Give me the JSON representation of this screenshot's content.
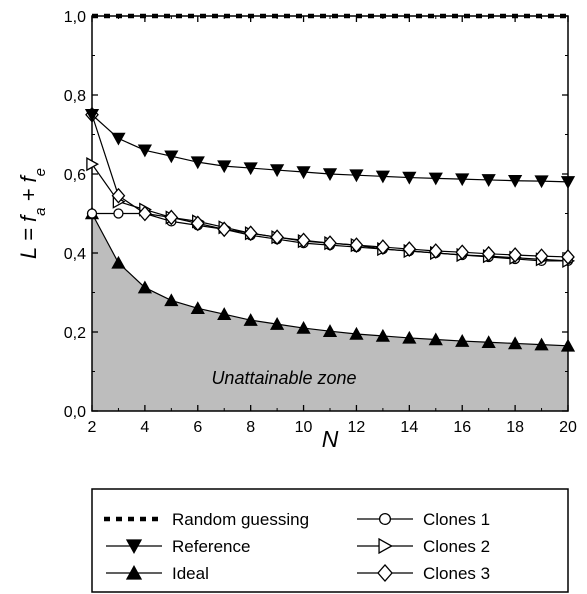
{
  "chart_data": {
    "type": "line",
    "x": [
      2,
      3,
      4,
      5,
      6,
      7,
      8,
      9,
      10,
      11,
      12,
      13,
      14,
      15,
      16,
      17,
      18,
      19,
      20
    ],
    "xlim": [
      2,
      20
    ],
    "ylim": [
      0,
      1
    ],
    "x_ticks": [
      "2",
      "4",
      "6",
      "8",
      "10",
      "12",
      "14",
      "16",
      "18",
      "20"
    ],
    "y_ticks": [
      "0,0",
      "0,2",
      "0,4",
      "0,6",
      "0,8",
      "1,0"
    ],
    "xlabel": "N",
    "ylabel": {
      "main": "L = f",
      "sub1": "a",
      "plus": " + f",
      "sub2": "e"
    },
    "annotation": "Unattainable zone",
    "legend_position": "bottom",
    "series": [
      {
        "name": "Random guessing",
        "marker": "none",
        "style": "dotted",
        "values": [
          1,
          1,
          1,
          1,
          1,
          1,
          1,
          1,
          1,
          1,
          1,
          1,
          1,
          1,
          1,
          1,
          1,
          1,
          1
        ]
      },
      {
        "name": "Reference",
        "marker": "triangle-down-filled",
        "style": "solid",
        "values": [
          0.75,
          0.69,
          0.66,
          0.645,
          0.63,
          0.62,
          0.615,
          0.61,
          0.605,
          0.6,
          0.597,
          0.594,
          0.591,
          0.589,
          0.587,
          0.585,
          0.583,
          0.582,
          0.58
        ]
      },
      {
        "name": "Ideal",
        "marker": "triangle-up-filled",
        "style": "solid",
        "fill_below": true,
        "values": [
          0.5,
          0.375,
          0.3125,
          0.28,
          0.26,
          0.245,
          0.23,
          0.22,
          0.21,
          0.202,
          0.195,
          0.19,
          0.185,
          0.181,
          0.177,
          0.174,
          0.171,
          0.168,
          0.165
        ]
      },
      {
        "name": "Clones 1",
        "marker": "circle-open",
        "style": "solid",
        "values": [
          0.5,
          0.5,
          0.5,
          0.48,
          0.47,
          0.46,
          0.445,
          0.435,
          0.425,
          0.42,
          0.415,
          0.41,
          0.405,
          0.4,
          0.395,
          0.39,
          0.385,
          0.38,
          0.38
        ]
      },
      {
        "name": "Clones 2",
        "marker": "triangle-right-open",
        "style": "solid",
        "values": [
          0.625,
          0.53,
          0.51,
          0.49,
          0.48,
          0.465,
          0.45,
          0.44,
          0.43,
          0.425,
          0.42,
          0.41,
          0.405,
          0.4,
          0.395,
          0.392,
          0.388,
          0.384,
          0.38
        ]
      },
      {
        "name": "Clones 3",
        "marker": "diamond-open",
        "style": "solid",
        "values": [
          0.75,
          0.545,
          0.5,
          0.49,
          0.475,
          0.46,
          0.45,
          0.44,
          0.432,
          0.425,
          0.42,
          0.415,
          0.41,
          0.405,
          0.402,
          0.398,
          0.395,
          0.392,
          0.39
        ]
      }
    ]
  },
  "colors": {
    "zone_fill": "#bdbdbd",
    "line": "#000000",
    "background": "#ffffff"
  }
}
